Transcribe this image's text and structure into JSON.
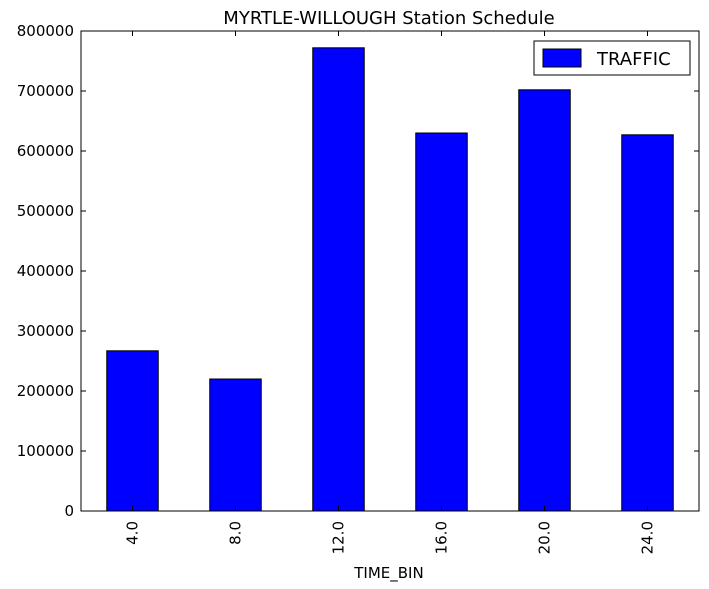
{
  "chart_data": {
    "type": "bar",
    "title": "MYRTLE-WILLOUGH Station Schedule",
    "xlabel": "TIME_BIN",
    "ylabel": "",
    "categories": [
      "4.0",
      "8.0",
      "12.0",
      "16.0",
      "20.0",
      "24.0"
    ],
    "series": [
      {
        "name": "TRAFFIC",
        "values": [
          267000,
          220000,
          772000,
          630000,
          702000,
          627000
        ],
        "color": "#0000ff"
      }
    ],
    "ylim": [
      0,
      800000
    ],
    "yticks": [
      0,
      100000,
      200000,
      300000,
      400000,
      500000,
      600000,
      700000,
      800000
    ],
    "ytick_labels": [
      "0",
      "100000",
      "200000",
      "300000",
      "400000",
      "500000",
      "600000",
      "700000",
      "800000"
    ],
    "grid": false,
    "legend_position": "top-right"
  }
}
